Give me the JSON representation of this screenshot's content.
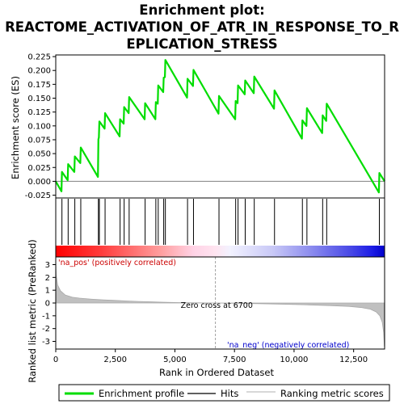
{
  "chart_data": {
    "type": "line",
    "title_lines": [
      "Enrichment plot:",
      "REACTOME_ACTIVATION_OF_ATR_IN_RESPONSE_TO_R",
      "EPLICATION_STRESS"
    ],
    "xlabel": "Rank in Ordered Dataset",
    "ylabel_top": "Enrichment score (ES)",
    "ylabel_bottom": "Ranked list metric (PreRanked)",
    "xlim": [
      0,
      13800
    ],
    "ylim_es": [
      -0.03,
      0.228
    ],
    "ylim_metric": [
      -3.6,
      3.6
    ],
    "x_ticks": [
      0,
      2500,
      5000,
      7500,
      10000,
      12500
    ],
    "x_tick_labels": [
      "0",
      "2,500",
      "5,000",
      "7,500",
      "10,000",
      "12,500"
    ],
    "es_ticks": [
      -0.025,
      0.0,
      0.025,
      0.05,
      0.075,
      0.1,
      0.125,
      0.15,
      0.175,
      0.2,
      0.225
    ],
    "es_tick_labels": [
      "-0.025",
      "0.000",
      "0.025",
      "0.050",
      "0.075",
      "0.100",
      "0.125",
      "0.150",
      "0.175",
      "0.200",
      "0.225"
    ],
    "metric_ticks": [
      -3,
      -2,
      -1,
      0,
      1,
      2,
      3
    ],
    "metric_tick_labels": [
      "-3",
      "-2",
      "-1",
      "0",
      "1",
      "2",
      "3"
    ],
    "hits": [
      260,
      520,
      800,
      1050,
      1790,
      1830,
      2070,
      2700,
      2870,
      3080,
      3750,
      4200,
      4300,
      4530,
      4600,
      5530,
      5780,
      6850,
      7550,
      7650,
      7950,
      8330,
      9180,
      10350,
      10540,
      11200,
      11370,
      13580
    ],
    "es_points": [
      [
        0,
        0.0
      ],
      [
        240,
        -0.018
      ],
      [
        260,
        0.017
      ],
      [
        500,
        0.002
      ],
      [
        520,
        0.031
      ],
      [
        780,
        0.017
      ],
      [
        800,
        0.045
      ],
      [
        1030,
        0.033
      ],
      [
        1050,
        0.061
      ],
      [
        1770,
        0.008
      ],
      [
        1790,
        0.076
      ],
      [
        1810,
        0.079
      ],
      [
        1830,
        0.108
      ],
      [
        2050,
        0.095
      ],
      [
        2070,
        0.123
      ],
      [
        2680,
        0.081
      ],
      [
        2700,
        0.112
      ],
      [
        2850,
        0.104
      ],
      [
        2870,
        0.134
      ],
      [
        3060,
        0.123
      ],
      [
        3080,
        0.152
      ],
      [
        3730,
        0.112
      ],
      [
        3750,
        0.141
      ],
      [
        4180,
        0.112
      ],
      [
        4200,
        0.143
      ],
      [
        4280,
        0.14
      ],
      [
        4300,
        0.173
      ],
      [
        4510,
        0.161
      ],
      [
        4530,
        0.187
      ],
      [
        4580,
        0.188
      ],
      [
        4600,
        0.219
      ],
      [
        5510,
        0.151
      ],
      [
        5530,
        0.185
      ],
      [
        5760,
        0.172
      ],
      [
        5780,
        0.201
      ],
      [
        6830,
        0.122
      ],
      [
        6850,
        0.154
      ],
      [
        7530,
        0.112
      ],
      [
        7550,
        0.145
      ],
      [
        7630,
        0.141
      ],
      [
        7650,
        0.173
      ],
      [
        7930,
        0.157
      ],
      [
        7950,
        0.182
      ],
      [
        8310,
        0.159
      ],
      [
        8330,
        0.189
      ],
      [
        9160,
        0.131
      ],
      [
        9180,
        0.164
      ],
      [
        10330,
        0.077
      ],
      [
        10350,
        0.11
      ],
      [
        10520,
        0.1
      ],
      [
        10540,
        0.132
      ],
      [
        11180,
        0.087
      ],
      [
        11200,
        0.119
      ],
      [
        11350,
        0.109
      ],
      [
        11370,
        0.14
      ],
      [
        13560,
        -0.02
      ],
      [
        13580,
        0.015
      ],
      [
        13800,
        0.0
      ]
    ],
    "metric_profile": [
      [
        0,
        3.35
      ],
      [
        20,
        2.2
      ],
      [
        80,
        1.4
      ],
      [
        200,
        0.95
      ],
      [
        400,
        0.62
      ],
      [
        700,
        0.45
      ],
      [
        1000,
        0.38
      ],
      [
        1500,
        0.3
      ],
      [
        2000,
        0.24
      ],
      [
        2500,
        0.2
      ],
      [
        3000,
        0.16
      ],
      [
        3500,
        0.12
      ],
      [
        4000,
        0.09
      ],
      [
        4500,
        0.06
      ],
      [
        5000,
        0.04
      ],
      [
        5500,
        0.025
      ],
      [
        6000,
        0.012
      ],
      [
        6700,
        0.0
      ],
      [
        7500,
        -0.02
      ],
      [
        8500,
        -0.05
      ],
      [
        9500,
        -0.09
      ],
      [
        10500,
        -0.14
      ],
      [
        11500,
        -0.2
      ],
      [
        12300,
        -0.27
      ],
      [
        12800,
        -0.35
      ],
      [
        13200,
        -0.48
      ],
      [
        13450,
        -0.7
      ],
      [
        13600,
        -1.0
      ],
      [
        13700,
        -1.5
      ],
      [
        13760,
        -2.3
      ],
      [
        13790,
        -3.4
      ]
    ],
    "zero_cross": 6700,
    "annotations": {
      "pos_label": "'na_pos' (positively correlated)",
      "neg_label": "'na_neg' (negatively correlated)",
      "zero_label": "Zero cross at 6700"
    },
    "legend": {
      "placement": "bottom",
      "items": [
        {
          "label": "Enrichment profile",
          "color": "#00dd00"
        },
        {
          "label": "Hits",
          "color": "#000000"
        },
        {
          "label": "Ranking metric scores",
          "color": "#c0c0c0"
        }
      ]
    },
    "colors": {
      "es_line": "#00dd00",
      "hits": "#000000",
      "metric_fill": "#c0c0c0",
      "zero_cross_line": "#a0a0a0",
      "pos_text": "#cc0000",
      "neg_text": "#0000cc",
      "bar_red": "#ff0000",
      "bar_white": "#ffffff",
      "bar_blue": "#0000ff"
    }
  }
}
